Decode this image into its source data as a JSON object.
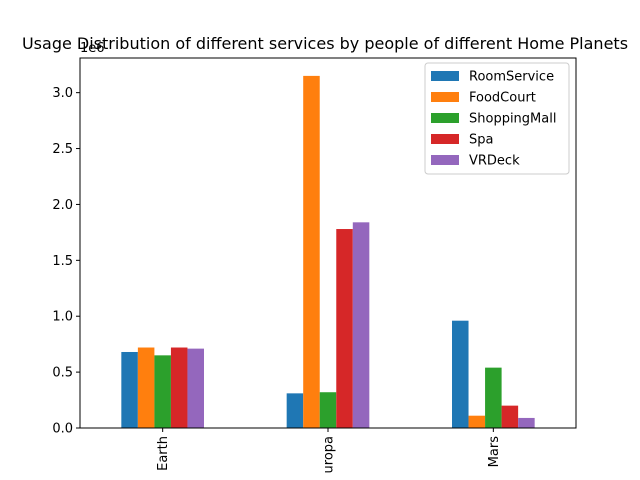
{
  "chart_data": {
    "type": "bar",
    "title": "Usage Distribution of different services by people of different Home Planets",
    "xlabel": "",
    "ylabel": "",
    "y_scale_label": "1e6",
    "ylim": [
      0,
      3.31
    ],
    "yticks": [
      0.0,
      0.5,
      1.0,
      1.5,
      2.0,
      2.5,
      3.0
    ],
    "ytick_labels": [
      "0.0",
      "0.5",
      "1.0",
      "1.5",
      "2.0",
      "2.5",
      "3.0"
    ],
    "categories": [
      "Earth",
      "uropa",
      "Mars"
    ],
    "legend_position": "top-right",
    "grid": false,
    "series": [
      {
        "name": "RoomService",
        "color": "#1f77b4",
        "values": [
          0.68,
          0.31,
          0.96
        ]
      },
      {
        "name": "FoodCourt",
        "color": "#ff7f0e",
        "values": [
          0.72,
          3.15,
          0.11
        ]
      },
      {
        "name": "ShoppingMall",
        "color": "#2ca02c",
        "values": [
          0.65,
          0.32,
          0.54
        ]
      },
      {
        "name": "Spa",
        "color": "#d62728",
        "values": [
          0.72,
          1.78,
          0.2
        ]
      },
      {
        "name": "VRDeck",
        "color": "#9467bd",
        "values": [
          0.71,
          1.84,
          0.09
        ]
      }
    ]
  }
}
